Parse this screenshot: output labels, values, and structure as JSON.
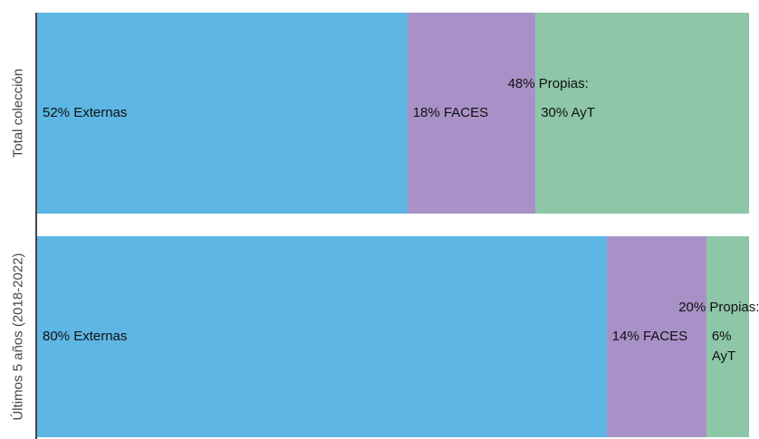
{
  "chart_data": {
    "type": "stacked-bar-horizontal",
    "categories": [
      "Total colección",
      "Últimos 5 años (2018-2022)"
    ],
    "xlim": [
      0,
      100
    ],
    "series": [
      {
        "color": "#5db6e4",
        "values": [
          52,
          80
        ],
        "value_labels": [
          "52% Externas",
          "80% Externas"
        ]
      },
      {
        "color": "#a991c8",
        "values": [
          18,
          14
        ],
        "value_labels": [
          "18% FACES",
          "14% FACES"
        ]
      },
      {
        "color": "#8ec6a8",
        "values": [
          30,
          6
        ],
        "value_labels": [
          "30% AyT",
          "6% AyT"
        ]
      }
    ],
    "annotations": [
      "48% Propias:",
      "20% Propias:"
    ]
  }
}
